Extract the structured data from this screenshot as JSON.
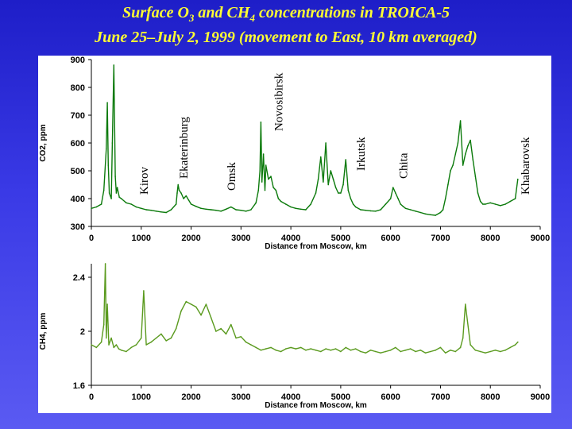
{
  "title": {
    "line1_a": "Surface O",
    "line1_sub1": "3",
    "line1_b": " and CH",
    "line1_sub2": "4",
    "line1_c": " concentrations in TROICA-5",
    "line2": "June 25–July 2, 1999 (movement to East, 10 km averaged)"
  },
  "colors": {
    "background_top": "#1e1ec8",
    "title": "#ffff33",
    "co2_series": "#0b7a0b",
    "ch4_series": "#5a9a1e"
  },
  "chart_data": [
    {
      "type": "line",
      "ylabel": "CO2, ppm",
      "xlabel": "Distance from Moscow, km",
      "xlim": [
        0,
        9000
      ],
      "ylim": [
        300,
        900
      ],
      "xticks": [
        0,
        1000,
        2000,
        3000,
        4000,
        5000,
        6000,
        7000,
        8000,
        9000
      ],
      "yticks": [
        300,
        400,
        500,
        600,
        700,
        800,
        900
      ],
      "grid": false,
      "annotations": [
        {
          "text": "Kirov",
          "x": 1050
        },
        {
          "text": "Ekaterinburg",
          "x": 1850
        },
        {
          "text": "Omsk",
          "x": 2800
        },
        {
          "text": "Novosibirsk",
          "x": 3750
        },
        {
          "text": "Irkutsk",
          "x": 5400
        },
        {
          "text": "Chita",
          "x": 6250
        },
        {
          "text": "Khabarovsk",
          "x": 8700
        }
      ],
      "series": [
        {
          "x": [
            0,
            100,
            200,
            250,
            300,
            320,
            340,
            360,
            400,
            420,
            450,
            480,
            500,
            520,
            560,
            600,
            700,
            800,
            900,
            1000,
            1100,
            1200,
            1300,
            1400,
            1500,
            1600,
            1700,
            1720,
            1740,
            1760,
            1800,
            1850,
            1900,
            1950,
            2000,
            2100,
            2200,
            2300,
            2400,
            2500,
            2600,
            2700,
            2800,
            2900,
            3000,
            3100,
            3200,
            3300,
            3350,
            3380,
            3400,
            3420,
            3450,
            3480,
            3500,
            3550,
            3600,
            3650,
            3700,
            3750,
            3800,
            3900,
            4000,
            4100,
            4200,
            4300,
            4400,
            4500,
            4550,
            4600,
            4650,
            4700,
            4750,
            4800,
            4850,
            4900,
            4950,
            5000,
            5050,
            5100,
            5150,
            5200,
            5250,
            5300,
            5400,
            5500,
            5600,
            5700,
            5800,
            5900,
            6000,
            6050,
            6100,
            6150,
            6200,
            6250,
            6300,
            6400,
            6500,
            6600,
            6700,
            6800,
            6900,
            7000,
            7050,
            7100,
            7150,
            7200,
            7250,
            7300,
            7350,
            7400,
            7450,
            7500,
            7550,
            7600,
            7650,
            7700,
            7750,
            7800,
            7850,
            7900,
            8000,
            8100,
            8200,
            8300,
            8400,
            8500,
            8550
          ],
          "y": [
            365,
            370,
            380,
            430,
            580,
            745,
            520,
            420,
            400,
            600,
            880,
            480,
            420,
            440,
            405,
            400,
            385,
            380,
            370,
            365,
            360,
            358,
            355,
            352,
            350,
            360,
            380,
            420,
            450,
            430,
            420,
            400,
            410,
            395,
            380,
            372,
            365,
            362,
            360,
            358,
            355,
            362,
            370,
            360,
            358,
            355,
            360,
            385,
            430,
            500,
            675,
            460,
            560,
            430,
            520,
            470,
            480,
            440,
            430,
            400,
            390,
            380,
            370,
            365,
            362,
            360,
            380,
            420,
            470,
            550,
            460,
            600,
            450,
            500,
            470,
            440,
            420,
            420,
            450,
            540,
            430,
            400,
            380,
            370,
            360,
            358,
            356,
            355,
            360,
            380,
            400,
            440,
            420,
            400,
            380,
            372,
            365,
            360,
            355,
            350,
            345,
            342,
            340,
            350,
            360,
            400,
            450,
            500,
            520,
            560,
            600,
            680,
            520,
            560,
            590,
            610,
            540,
            480,
            420,
            390,
            380,
            380,
            385,
            380,
            375,
            380,
            390,
            400,
            470
          ]
        }
      ]
    },
    {
      "type": "line",
      "ylabel": "CH4, ppm",
      "xlabel": "Distance from Moscow, km",
      "xlim": [
        0,
        9000
      ],
      "ylim": [
        1.6,
        2.5
      ],
      "xticks": [
        0,
        1000,
        2000,
        3000,
        4000,
        5000,
        6000,
        7000,
        8000,
        9000
      ],
      "yticks": [
        1.6,
        2,
        2.4
      ],
      "ytick_labels": [
        "1.6",
        "2",
        "2.4"
      ],
      "grid": false,
      "series": [
        {
          "x": [
            0,
            100,
            200,
            250,
            280,
            300,
            320,
            350,
            400,
            450,
            500,
            550,
            600,
            700,
            800,
            900,
            1000,
            1050,
            1100,
            1200,
            1300,
            1400,
            1500,
            1600,
            1700,
            1800,
            1900,
            2000,
            2100,
            2200,
            2300,
            2400,
            2500,
            2600,
            2700,
            2800,
            2900,
            3000,
            3100,
            3200,
            3300,
            3400,
            3500,
            3600,
            3700,
            3800,
            3900,
            4000,
            4100,
            4200,
            4300,
            4400,
            4500,
            4600,
            4700,
            4800,
            4900,
            5000,
            5100,
            5200,
            5300,
            5400,
            5500,
            5600,
            5700,
            5800,
            5900,
            6000,
            6100,
            6200,
            6300,
            6400,
            6500,
            6600,
            6700,
            6800,
            6900,
            7000,
            7100,
            7200,
            7300,
            7400,
            7450,
            7500,
            7600,
            7700,
            7800,
            7900,
            8000,
            8100,
            8200,
            8300,
            8400,
            8500,
            8550
          ],
          "y": [
            1.9,
            1.88,
            1.92,
            2.05,
            2.5,
            1.95,
            2.2,
            1.9,
            1.95,
            1.88,
            1.9,
            1.87,
            1.86,
            1.85,
            1.88,
            1.9,
            1.95,
            2.3,
            1.9,
            1.92,
            1.95,
            1.98,
            1.93,
            1.95,
            2.02,
            2.15,
            2.22,
            2.2,
            2.18,
            2.12,
            2.2,
            2.1,
            2.0,
            2.02,
            1.98,
            2.05,
            1.95,
            1.96,
            1.92,
            1.9,
            1.88,
            1.86,
            1.87,
            1.88,
            1.86,
            1.85,
            1.87,
            1.88,
            1.87,
            1.88,
            1.86,
            1.87,
            1.86,
            1.85,
            1.87,
            1.86,
            1.87,
            1.85,
            1.88,
            1.86,
            1.87,
            1.85,
            1.84,
            1.86,
            1.85,
            1.84,
            1.85,
            1.86,
            1.88,
            1.85,
            1.86,
            1.87,
            1.85,
            1.86,
            1.84,
            1.85,
            1.86,
            1.88,
            1.84,
            1.86,
            1.85,
            1.88,
            1.95,
            2.2,
            1.9,
            1.86,
            1.85,
            1.84,
            1.85,
            1.86,
            1.85,
            1.86,
            1.88,
            1.9,
            1.92
          ]
        }
      ]
    }
  ]
}
